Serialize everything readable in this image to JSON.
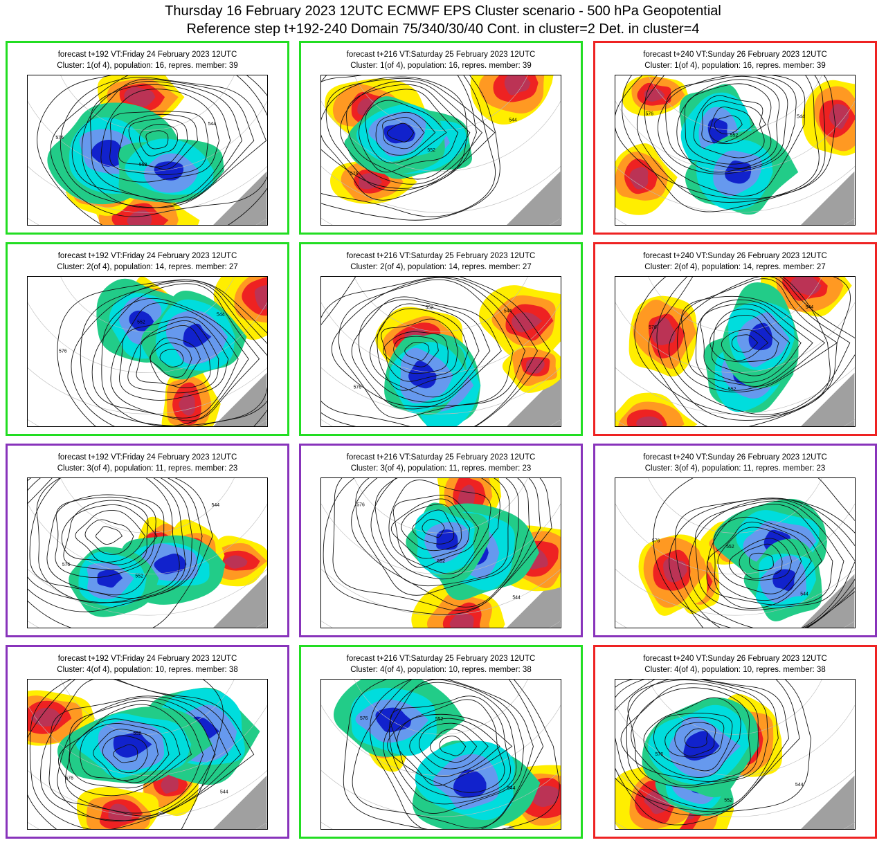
{
  "header": {
    "line1": "Thursday 16 February 2023 12UTC ECMWF EPS Cluster scenario - 500 hPa Geopotential",
    "line2": "Reference step t+192-240 Domain 75/340/30/40 Cont. in cluster=2 Det. in cluster=4"
  },
  "colors": {
    "green": "#22dd22",
    "red": "#ee2222",
    "purple": "#8833bb"
  },
  "steps": [
    "forecast t+192 VT:Friday 24 February 2023 12UTC",
    "forecast t+216 VT:Saturday 25 February 2023 12UTC",
    "forecast t+240 VT:Sunday 26 February 2023 12UTC"
  ],
  "clusters": [
    "Cluster: 1(of 4), population: 16, repres. member: 39",
    "Cluster: 2(of 4), population: 14, repres. member: 27",
    "Cluster: 3(of 4), population: 11, repres. member: 23",
    "Cluster: 4(of 4), population: 10, repres. member: 38"
  ],
  "panel_borders": [
    [
      "green",
      "green",
      "red"
    ],
    [
      "green",
      "green",
      "red"
    ],
    [
      "purple",
      "purple",
      "purple"
    ],
    [
      "purple",
      "green",
      "red"
    ]
  ],
  "contour_labels": [
    "576",
    "552",
    "544",
    "528",
    "512",
    "560"
  ]
}
